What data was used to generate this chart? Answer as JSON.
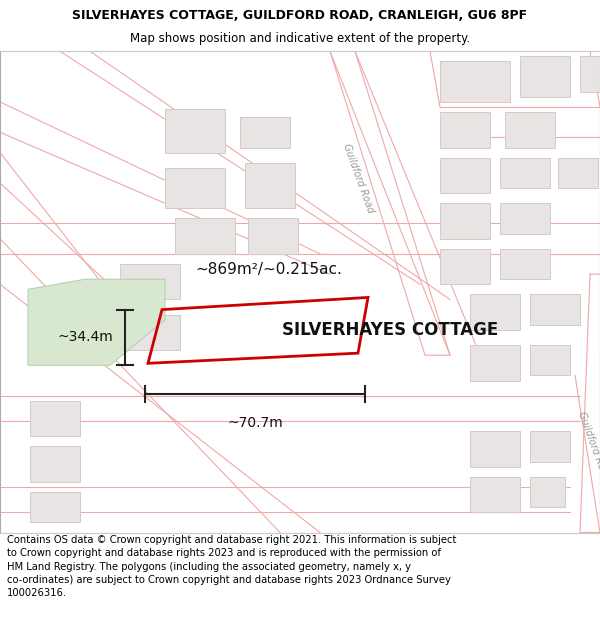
{
  "title": "SILVERHAYES COTTAGE, GUILDFORD ROAD, CRANLEIGH, GU6 8PF",
  "subtitle": "Map shows position and indicative extent of the property.",
  "footer": "Contains OS data © Crown copyright and database right 2021. This information is subject to Crown copyright and database rights 2023 and is reproduced with the permission of HM Land Registry. The polygons (including the associated geometry, namely x, y co-ordinates) are subject to Crown copyright and database rights 2023 Ordnance Survey 100026316.",
  "property_label": "SILVERHAYES COTTAGE",
  "area_label": "~869m²/~0.215ac.",
  "width_label": "~70.7m",
  "height_label": "~34.4m",
  "map_bg": "#faf8f8",
  "road_line_color": "#f0a8a8",
  "building_fill": "#e8e4e4",
  "building_stroke": "#d8c8c8",
  "green_fill": "#d8e8d0",
  "green_stroke": "#b8d0b0",
  "plot_color": "#cc0000",
  "dim_line_color": "#222222",
  "road_label_color": "#888888",
  "title_fontsize": 9,
  "subtitle_fontsize": 8.5,
  "footer_fontsize": 7.2
}
